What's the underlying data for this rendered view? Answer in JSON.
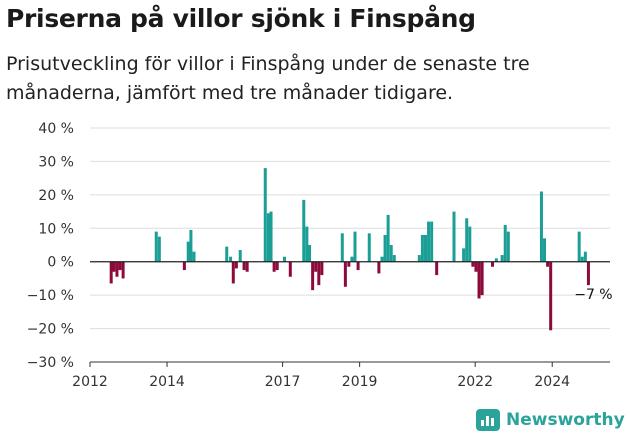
{
  "title": "Priserna på villor sjönk i Finspång",
  "subtitle": "Prisutveckling för villor i Finspång under de senaste tre månaderna, jämfört med tre månader tidigare.",
  "brand": "Newsworthy",
  "colors": {
    "positive": "#1a9e96",
    "negative": "#8c0a3c",
    "grid": "#dddddd",
    "brand": "#2aa39a"
  },
  "chart_data": {
    "type": "bar",
    "x_unit": "year",
    "y_unit": "%",
    "ylim": [
      -30,
      40
    ],
    "y_ticks": [
      -30,
      -20,
      -10,
      0,
      10,
      20,
      30,
      40
    ],
    "y_tick_labels": [
      "−30 %",
      "−20 %",
      "−10 %",
      "0 %",
      "10 %",
      "20 %",
      "30 %",
      "40 %"
    ],
    "x_ticks": [
      2012,
      2014,
      2017,
      2019,
      2022,
      2024
    ],
    "x_tick_labels": [
      "2012",
      "2014",
      "2017",
      "2019",
      "2022",
      "2024"
    ],
    "annotation": "−7 %",
    "grid": true,
    "points": [
      {
        "x": 2012.55,
        "y": -6.5
      },
      {
        "x": 2012.62,
        "y": -3
      },
      {
        "x": 2012.7,
        "y": -4.5
      },
      {
        "x": 2012.78,
        "y": -2.5
      },
      {
        "x": 2012.86,
        "y": -5
      },
      {
        "x": 2013.72,
        "y": 9
      },
      {
        "x": 2013.8,
        "y": 7.5
      },
      {
        "x": 2014.45,
        "y": -2.5
      },
      {
        "x": 2014.55,
        "y": 6
      },
      {
        "x": 2014.62,
        "y": 9.5
      },
      {
        "x": 2014.7,
        "y": 3
      },
      {
        "x": 2015.55,
        "y": 4.5
      },
      {
        "x": 2015.65,
        "y": 1.5
      },
      {
        "x": 2015.72,
        "y": -6.5
      },
      {
        "x": 2015.8,
        "y": -2
      },
      {
        "x": 2015.9,
        "y": 3.5
      },
      {
        "x": 2016.0,
        "y": -2.5
      },
      {
        "x": 2016.08,
        "y": -3
      },
      {
        "x": 2016.55,
        "y": 28
      },
      {
        "x": 2016.63,
        "y": 14.5
      },
      {
        "x": 2016.7,
        "y": 15
      },
      {
        "x": 2016.78,
        "y": -3
      },
      {
        "x": 2016.86,
        "y": -2.5
      },
      {
        "x": 2017.05,
        "y": 1.5
      },
      {
        "x": 2017.2,
        "y": -4.5
      },
      {
        "x": 2017.55,
        "y": 18.5
      },
      {
        "x": 2017.63,
        "y": 10.5
      },
      {
        "x": 2017.7,
        "y": 5
      },
      {
        "x": 2017.78,
        "y": -8.5
      },
      {
        "x": 2017.86,
        "y": -3
      },
      {
        "x": 2017.94,
        "y": -7
      },
      {
        "x": 2018.02,
        "y": -4
      },
      {
        "x": 2018.55,
        "y": 8.5
      },
      {
        "x": 2018.63,
        "y": -7.5
      },
      {
        "x": 2018.72,
        "y": -1.5
      },
      {
        "x": 2018.8,
        "y": 1.5
      },
      {
        "x": 2018.88,
        "y": 9
      },
      {
        "x": 2018.96,
        "y": -2.5
      },
      {
        "x": 2019.25,
        "y": 8.5
      },
      {
        "x": 2019.5,
        "y": -3.5
      },
      {
        "x": 2019.58,
        "y": 1.5
      },
      {
        "x": 2019.66,
        "y": 8
      },
      {
        "x": 2019.74,
        "y": 14
      },
      {
        "x": 2019.82,
        "y": 5
      },
      {
        "x": 2019.9,
        "y": 2
      },
      {
        "x": 2020.55,
        "y": 2
      },
      {
        "x": 2020.63,
        "y": 8
      },
      {
        "x": 2020.71,
        "y": 8
      },
      {
        "x": 2020.79,
        "y": 12
      },
      {
        "x": 2020.87,
        "y": 12
      },
      {
        "x": 2021.0,
        "y": -4
      },
      {
        "x": 2021.45,
        "y": 15
      },
      {
        "x": 2021.7,
        "y": 4
      },
      {
        "x": 2021.78,
        "y": 13
      },
      {
        "x": 2021.86,
        "y": 10.5
      },
      {
        "x": 2021.94,
        "y": -1.5
      },
      {
        "x": 2022.02,
        "y": -3
      },
      {
        "x": 2022.1,
        "y": -11
      },
      {
        "x": 2022.18,
        "y": -10
      },
      {
        "x": 2022.45,
        "y": -1.5
      },
      {
        "x": 2022.55,
        "y": 1
      },
      {
        "x": 2022.7,
        "y": 2
      },
      {
        "x": 2022.78,
        "y": 11
      },
      {
        "x": 2022.86,
        "y": 9
      },
      {
        "x": 2023.72,
        "y": 21
      },
      {
        "x": 2023.8,
        "y": 7
      },
      {
        "x": 2023.88,
        "y": -1.5
      },
      {
        "x": 2023.96,
        "y": -20.5
      },
      {
        "x": 2024.7,
        "y": 9
      },
      {
        "x": 2024.78,
        "y": 1.5
      },
      {
        "x": 2024.86,
        "y": 3
      },
      {
        "x": 2024.94,
        "y": -7
      }
    ]
  }
}
